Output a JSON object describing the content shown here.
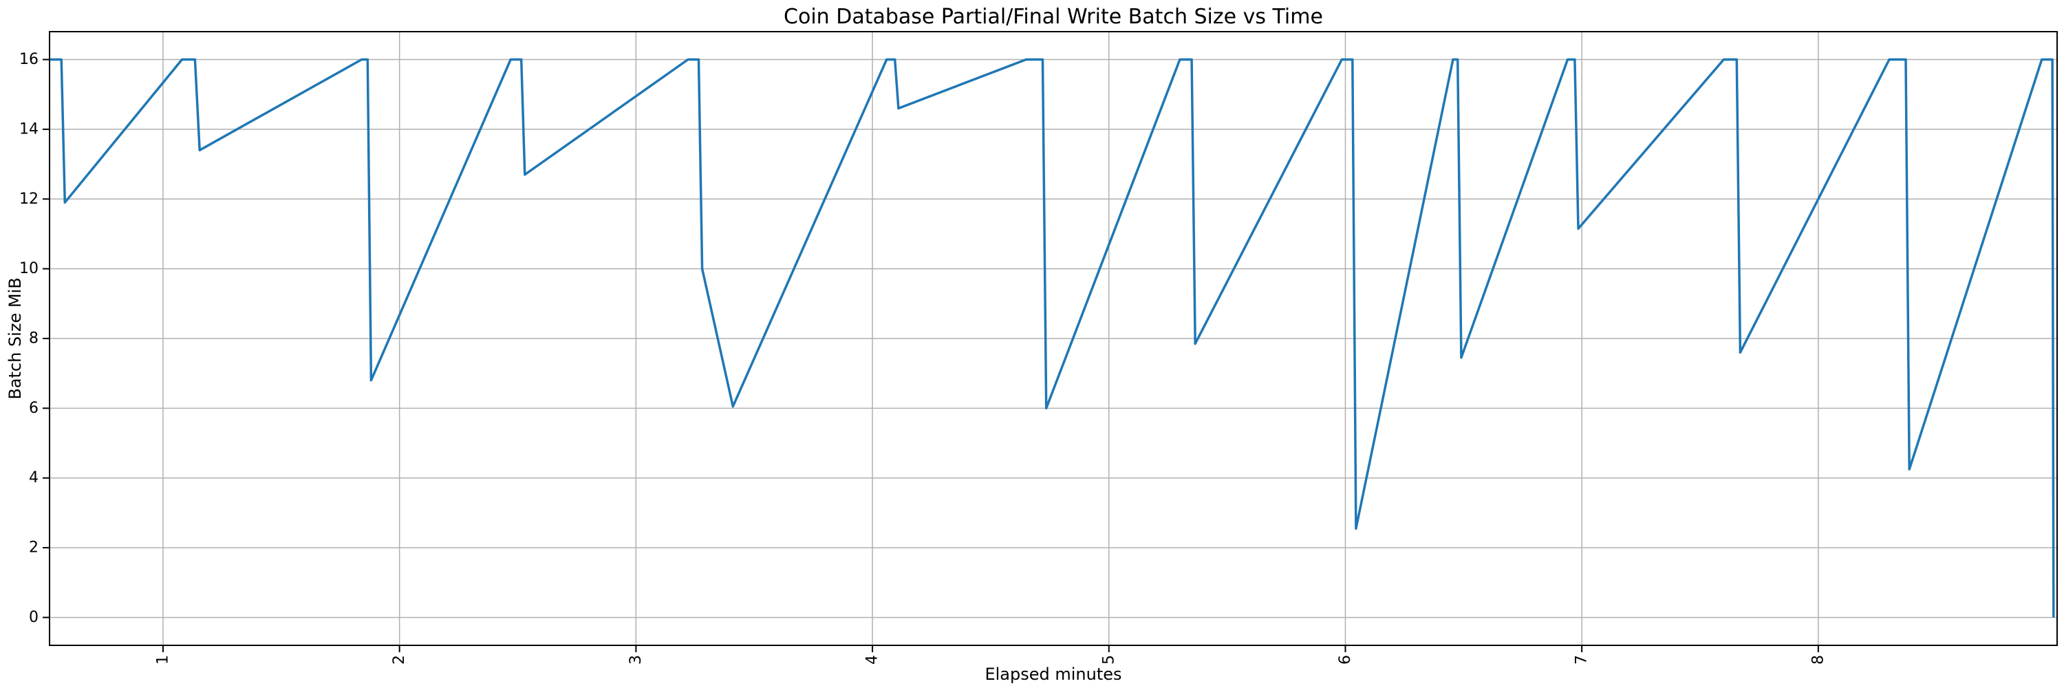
{
  "chart_data": {
    "type": "line",
    "title": "Coin Database Partial/Final Write Batch Size vs Time",
    "xlabel": "Elapsed minutes",
    "ylabel": "Batch Size MiB",
    "xlim": [
      0.52,
      9.01
    ],
    "ylim": [
      -0.8,
      16.8
    ],
    "x_ticks": [
      1,
      2,
      3,
      4,
      5,
      6,
      7,
      8
    ],
    "y_ticks": [
      0,
      2,
      4,
      6,
      8,
      10,
      12,
      14,
      16
    ],
    "x_tick_rotation_deg": -90,
    "grid": true,
    "legend": false,
    "colors": {
      "line": "#1f77b4",
      "grid": "#b0b0b0",
      "spine": "#000000",
      "background": "#ffffff"
    },
    "series": [
      {
        "name": "batch_size_mib",
        "color": "#1f77b4",
        "points": [
          [
            0.52,
            16
          ],
          [
            0.57,
            16
          ],
          [
            0.585,
            11.9
          ],
          [
            1.08,
            16
          ],
          [
            1.135,
            16
          ],
          [
            1.155,
            13.4
          ],
          [
            1.84,
            16
          ],
          [
            1.865,
            16
          ],
          [
            1.88,
            6.8
          ],
          [
            2.47,
            16
          ],
          [
            2.515,
            16
          ],
          [
            2.53,
            12.7
          ],
          [
            3.22,
            16
          ],
          [
            3.265,
            16
          ],
          [
            3.28,
            10.0
          ],
          [
            3.41,
            6.05
          ],
          [
            4.06,
            16
          ],
          [
            4.095,
            16
          ],
          [
            4.11,
            14.6
          ],
          [
            4.65,
            16
          ],
          [
            4.72,
            16
          ],
          [
            4.735,
            6.0
          ],
          [
            5.3,
            16
          ],
          [
            5.35,
            16
          ],
          [
            5.365,
            7.85
          ],
          [
            5.985,
            16
          ],
          [
            6.03,
            16
          ],
          [
            6.045,
            2.55
          ],
          [
            6.455,
            16
          ],
          [
            6.475,
            16
          ],
          [
            6.49,
            7.45
          ],
          [
            6.94,
            16
          ],
          [
            6.97,
            16
          ],
          [
            6.985,
            11.15
          ],
          [
            7.6,
            16
          ],
          [
            7.655,
            16
          ],
          [
            7.67,
            7.6
          ],
          [
            8.3,
            16
          ],
          [
            8.37,
            16
          ],
          [
            8.385,
            4.25
          ],
          [
            8.945,
            16
          ],
          [
            8.99,
            16
          ],
          [
            8.995,
            0.0
          ]
        ]
      }
    ]
  }
}
